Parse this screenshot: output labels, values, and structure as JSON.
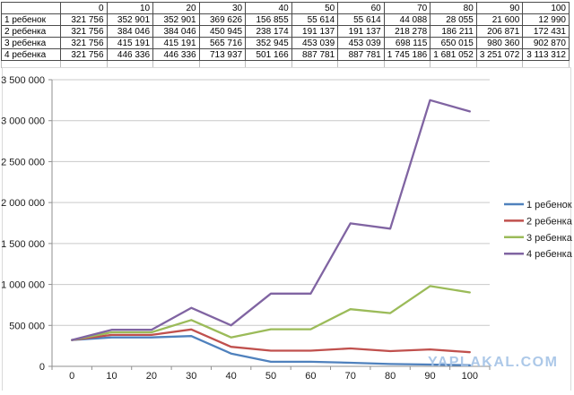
{
  "page": {
    "watermark": "YAPLAKAL.COM"
  },
  "table": {
    "corner_label": ""
  },
  "chart_data": {
    "type": "line",
    "title": "",
    "xlabel": "",
    "ylabel": "",
    "categories": [
      0,
      10,
      20,
      30,
      40,
      50,
      60,
      70,
      80,
      90,
      100
    ],
    "series": [
      {
        "name": "1 ребенок",
        "color": "#4F81BD",
        "values": [
          321756,
          352901,
          352901,
          369626,
          156855,
          55614,
          55614,
          44088,
          28055,
          21600,
          12990
        ]
      },
      {
        "name": "2 ребенка",
        "color": "#C0504D",
        "values": [
          321756,
          384046,
          384046,
          450945,
          238174,
          191137,
          191137,
          218278,
          186211,
          206871,
          172431
        ]
      },
      {
        "name": "3 ребенка",
        "color": "#9BBB59",
        "values": [
          321756,
          415191,
          415191,
          565716,
          352945,
          453039,
          453039,
          698115,
          650015,
          980360,
          902870
        ]
      },
      {
        "name": "4 ребенка",
        "color": "#8064A2",
        "values": [
          321756,
          446336,
          446336,
          713937,
          501166,
          887781,
          887781,
          1745186,
          1681052,
          3251072,
          3113312
        ]
      }
    ],
    "ylim": [
      0,
      3500000
    ],
    "y_step": 500000,
    "grid": true,
    "legend_position": "right",
    "number_format": "space-separated thousands",
    "colors": {
      "gridline": "#c9c9c9",
      "axis": "#8f8f8f",
      "frame": "#d9d9d9",
      "label_text": "#1a1a1a"
    }
  }
}
